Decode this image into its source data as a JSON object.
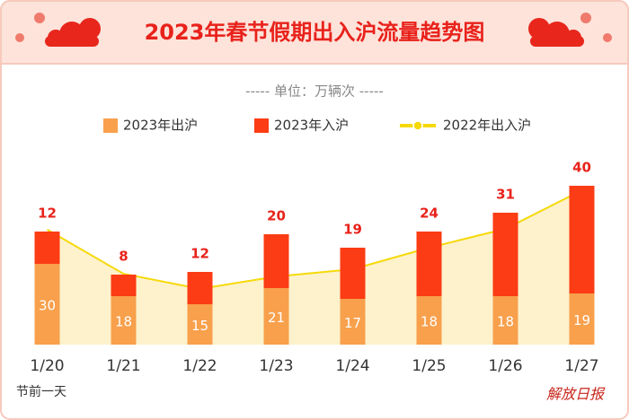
{
  "chart_data": {
    "type": "bar",
    "stacked": true,
    "title": "2023年春节假期出入沪流量趋势图",
    "subtitle": "----- 单位：万辆次 -----",
    "categories": [
      "1/20",
      "1/21",
      "1/22",
      "1/23",
      "1/24",
      "1/25",
      "1/26",
      "1/27"
    ],
    "annotation": "节前一天",
    "source": "解放日报",
    "series": [
      {
        "name": "2023年出沪",
        "color": "#f8a04c",
        "type": "bar",
        "values": [
          30,
          18,
          15,
          21,
          17,
          18,
          18,
          19
        ]
      },
      {
        "name": "2023年入沪",
        "color": "#fb3c14",
        "type": "bar",
        "values": [
          12,
          8,
          12,
          20,
          19,
          24,
          31,
          40
        ]
      },
      {
        "name": "2022年出入沪",
        "color": "#f6d90a",
        "area_color": "#fdf2cc",
        "type": "line",
        "values": [
          42.7,
          26.3,
          20.7,
          25.3,
          28,
          36,
          43,
          57.3
        ]
      }
    ]
  }
}
